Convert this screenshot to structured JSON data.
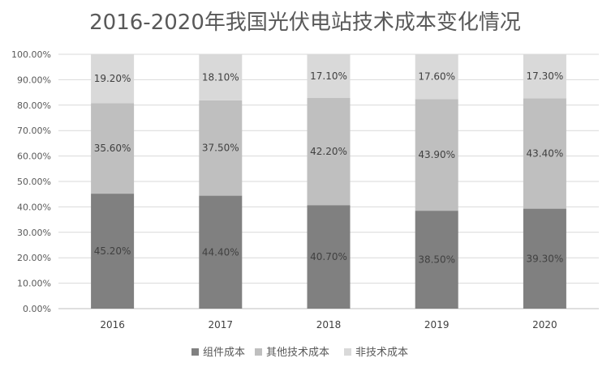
{
  "chart_data": {
    "type": "bar",
    "stacked": true,
    "percent": true,
    "title": "2016-2020年我国光伏电站技术成本变化情况",
    "categories": [
      "2016",
      "2017",
      "2018",
      "2019",
      "2020"
    ],
    "series": [
      {
        "name": "组件成本",
        "values": [
          45.2,
          44.4,
          40.7,
          38.5,
          39.3
        ],
        "labels": [
          "45.20%",
          "44.40%",
          "40.70%",
          "38.50%",
          "39.30%"
        ],
        "color": "#808080"
      },
      {
        "name": "其他技术成本",
        "values": [
          35.6,
          37.5,
          42.2,
          43.9,
          43.4
        ],
        "labels": [
          "35.60%",
          "37.50%",
          "42.20%",
          "43.90%",
          "43.40%"
        ],
        "color": "#bfbfbf"
      },
      {
        "name": "非技术成本",
        "values": [
          19.2,
          18.1,
          17.1,
          17.6,
          17.3
        ],
        "labels": [
          "19.20%",
          "18.10%",
          "17.10%",
          "17.60%",
          "17.30%"
        ],
        "color": "#d9d9d9"
      }
    ],
    "ylim": [
      0,
      100
    ],
    "yticks": [
      "0.00%",
      "10.00%",
      "20.00%",
      "30.00%",
      "40.00%",
      "50.00%",
      "60.00%",
      "70.00%",
      "80.00%",
      "90.00%",
      "100.00%"
    ],
    "grid": true,
    "legend": "bottom"
  }
}
